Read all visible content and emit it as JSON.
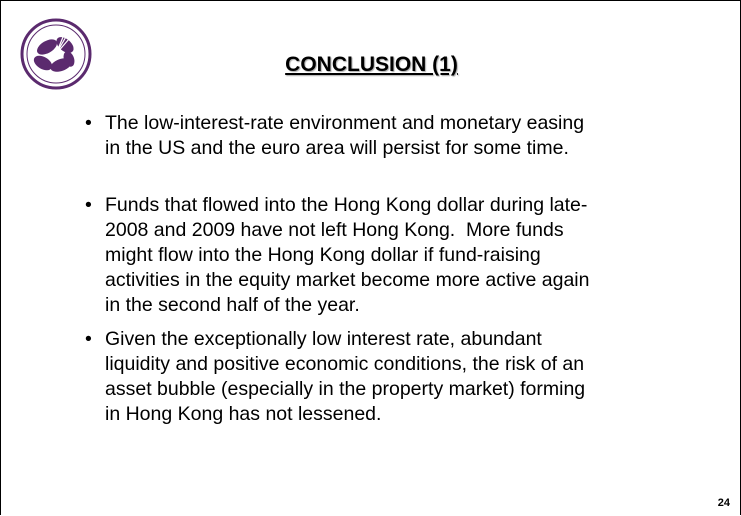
{
  "header": {
    "title": "CONCLUSION (1)"
  },
  "bullets": [
    [
      "The low-interest-rate environment and monetary easing",
      "in the US and the euro area will persist for some time."
    ],
    [
      "Funds that flowed into the Hong Kong dollar during late-",
      "2008 and 2009 have not left Hong Kong.  More funds",
      "might flow into the Hong Kong dollar if fund-raising",
      "activities in the equity market become more active again",
      "in the second half of the year."
    ],
    [
      "Given the exceptionally low interest rate, abundant",
      "liquidity and positive economic conditions, the risk of an",
      "asset bubble (especially in the property market) forming",
      "in Hong Kong has not lessened."
    ]
  ],
  "page_number": "24"
}
